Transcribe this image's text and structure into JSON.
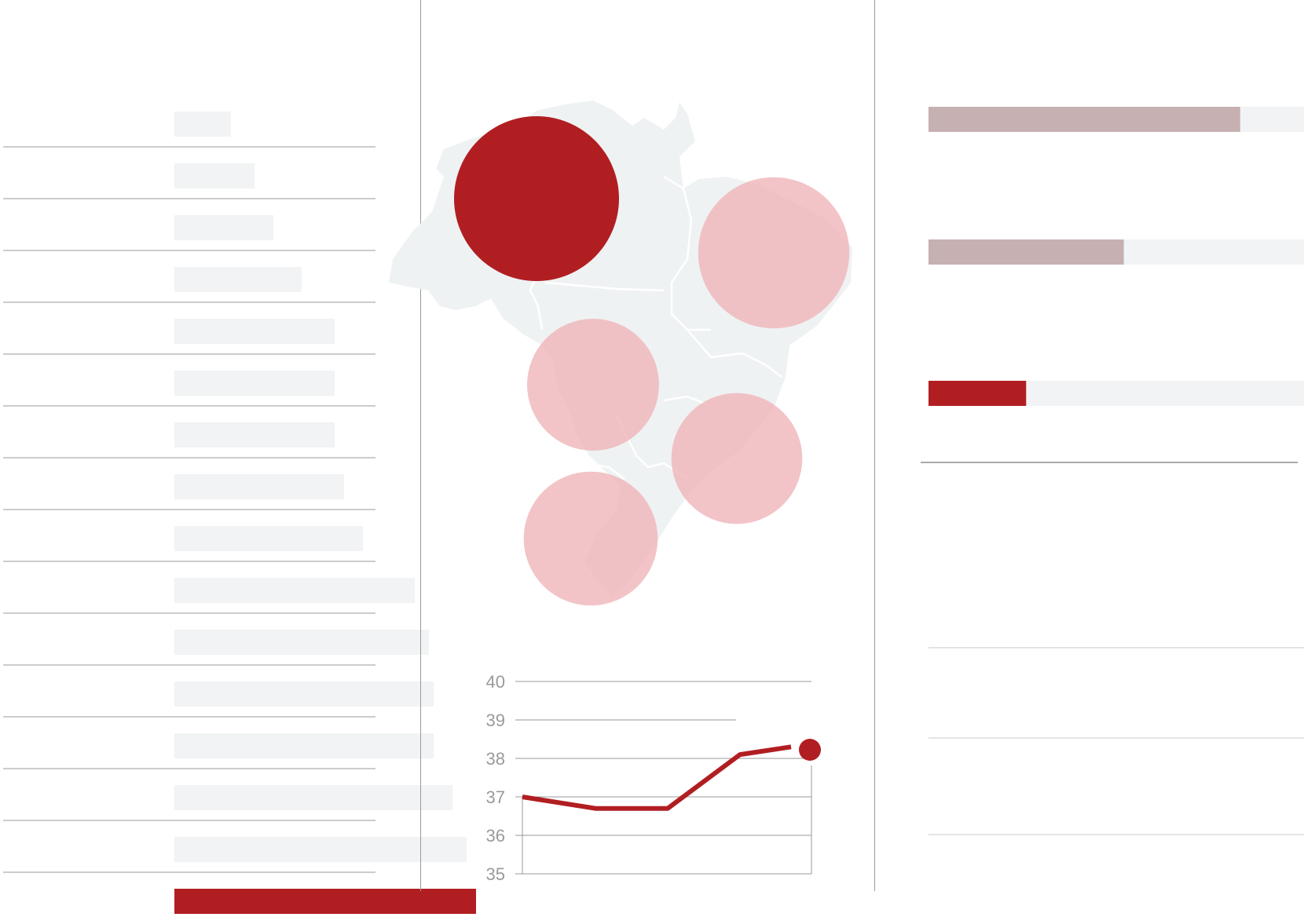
{
  "colors": {
    "accent": "#b11e22",
    "bar_muted": "#c6b0b1",
    "track": "#f1f3f4",
    "bubble": "#eeb4b7",
    "map_fill": "#eff2f3",
    "rule": "#9a9a9a"
  },
  "chart_data": [
    {
      "type": "bar",
      "orientation": "horizontal",
      "categories": [
        "",
        "",
        "",
        "",
        "",
        "",
        "",
        "",
        "",
        "",
        "",
        "",
        "",
        "",
        "",
        ""
      ],
      "values": [
        12,
        17,
        21,
        27,
        34,
        34,
        34,
        36,
        40,
        51,
        54,
        55,
        55,
        59,
        62,
        64
      ],
      "highlight_index": 15,
      "xlim": [
        0,
        100
      ],
      "grid": false
    },
    {
      "type": "line",
      "x": [
        1,
        2,
        3,
        4,
        5
      ],
      "values": [
        37.0,
        36.7,
        36.7,
        38.1,
        38.3
      ],
      "yticks": [
        "35",
        "36",
        "37",
        "38",
        "39",
        "40"
      ],
      "ylim": [
        35,
        40
      ],
      "grid": true,
      "end_marker": true
    },
    {
      "type": "bar",
      "orientation": "horizontal",
      "categories": [
        "",
        "",
        ""
      ],
      "values": [
        83,
        52,
        26
      ],
      "xlim": [
        0,
        100
      ],
      "highlight_index": 2
    },
    {
      "type": "scatter",
      "subtype": "bubble-map",
      "region": "Brazil",
      "bubbles": [
        {
          "size": 100,
          "highlight": true
        },
        {
          "size": 84
        },
        {
          "size": 64
        },
        {
          "size": 63
        },
        {
          "size": 66
        }
      ]
    }
  ]
}
